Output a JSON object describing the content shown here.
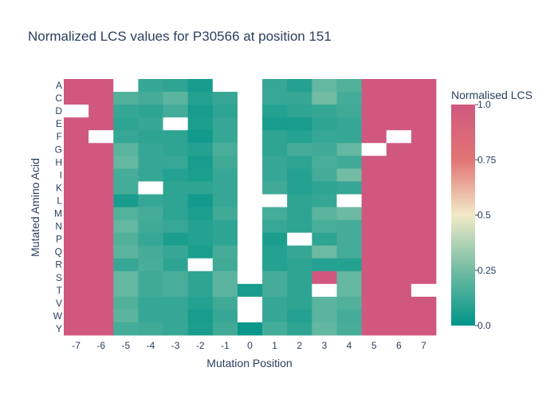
{
  "chart_data": {
    "type": "heatmap",
    "title": "Normalized LCS values for P30566 at position 151",
    "xlabel": "Mutation Position",
    "ylabel": "Mutated Amino Acid",
    "x": [
      "-7",
      "-6",
      "-5",
      "-4",
      "-3",
      "-2",
      "-1",
      "0",
      "1",
      "2",
      "3",
      "4",
      "5",
      "6",
      "7"
    ],
    "y": [
      "A",
      "C",
      "D",
      "E",
      "F",
      "G",
      "H",
      "I",
      "K",
      "L",
      "M",
      "N",
      "P",
      "Q",
      "R",
      "S",
      "T",
      "V",
      "W",
      "Y"
    ],
    "z": [
      [
        1.0,
        1.0,
        null,
        0.12,
        0.1,
        0.05,
        null,
        null,
        0.12,
        0.08,
        0.22,
        0.18,
        1.0,
        1.0,
        1.0
      ],
      [
        1.0,
        1.0,
        0.18,
        0.15,
        0.2,
        0.08,
        0.12,
        null,
        0.12,
        0.12,
        0.25,
        0.15,
        1.0,
        1.0,
        1.0
      ],
      [
        null,
        1.0,
        0.12,
        0.1,
        0.15,
        0.05,
        0.1,
        null,
        0.08,
        0.1,
        0.12,
        0.14,
        1.0,
        1.0,
        1.0
      ],
      [
        1.0,
        1.0,
        0.1,
        0.12,
        null,
        0.06,
        0.12,
        null,
        0.05,
        0.05,
        0.1,
        0.12,
        1.0,
        1.0,
        1.0
      ],
      [
        1.0,
        null,
        0.12,
        0.1,
        0.1,
        0.04,
        0.12,
        null,
        0.1,
        0.08,
        0.12,
        0.12,
        1.0,
        null,
        1.0
      ],
      [
        1.0,
        1.0,
        0.2,
        0.12,
        0.1,
        0.08,
        0.16,
        null,
        0.1,
        0.15,
        0.14,
        0.22,
        null,
        1.0,
        1.0
      ],
      [
        1.0,
        1.0,
        0.22,
        0.12,
        0.12,
        0.05,
        0.14,
        null,
        0.12,
        0.1,
        0.16,
        0.14,
        1.0,
        1.0,
        1.0
      ],
      [
        1.0,
        1.0,
        0.15,
        0.12,
        0.08,
        0.06,
        0.12,
        null,
        0.12,
        0.08,
        0.15,
        0.25,
        1.0,
        1.0,
        1.0
      ],
      [
        1.0,
        1.0,
        0.15,
        null,
        0.1,
        0.1,
        0.12,
        null,
        0.14,
        0.08,
        0.1,
        0.12,
        1.0,
        1.0,
        1.0
      ],
      [
        1.0,
        1.0,
        0.05,
        0.12,
        0.1,
        0.04,
        0.12,
        null,
        null,
        0.1,
        0.12,
        null,
        1.0,
        1.0,
        1.0
      ],
      [
        1.0,
        1.0,
        0.18,
        0.15,
        0.1,
        0.06,
        0.14,
        null,
        0.15,
        0.1,
        0.2,
        0.24,
        1.0,
        1.0,
        1.0
      ],
      [
        1.0,
        1.0,
        0.22,
        0.14,
        0.12,
        0.08,
        0.1,
        null,
        0.12,
        0.1,
        0.16,
        0.15,
        1.0,
        1.0,
        1.0
      ],
      [
        1.0,
        1.0,
        0.18,
        0.12,
        0.06,
        0.08,
        0.1,
        null,
        0.06,
        null,
        0.1,
        0.15,
        1.0,
        1.0,
        1.0
      ],
      [
        1.0,
        1.0,
        0.2,
        0.15,
        0.12,
        0.06,
        0.15,
        null,
        0.08,
        0.12,
        0.24,
        0.15,
        1.0,
        1.0,
        1.0
      ],
      [
        1.0,
        1.0,
        0.12,
        0.16,
        0.1,
        null,
        0.14,
        null,
        0.08,
        0.1,
        0.08,
        0.08,
        1.0,
        1.0,
        1.0
      ],
      [
        1.0,
        1.0,
        0.22,
        0.14,
        0.16,
        0.1,
        0.2,
        null,
        0.15,
        0.1,
        1.0,
        0.22,
        1.0,
        1.0,
        1.0
      ],
      [
        1.0,
        1.0,
        0.22,
        0.14,
        0.16,
        0.1,
        0.2,
        0.05,
        0.15,
        0.1,
        null,
        0.22,
        1.0,
        1.0,
        null
      ],
      [
        1.0,
        1.0,
        0.18,
        0.12,
        0.12,
        0.08,
        0.14,
        null,
        0.12,
        0.1,
        0.2,
        0.18,
        1.0,
        1.0,
        1.0
      ],
      [
        1.0,
        1.0,
        0.2,
        0.12,
        0.12,
        0.05,
        0.12,
        null,
        0.12,
        0.08,
        0.2,
        0.15,
        1.0,
        1.0,
        1.0
      ],
      [
        1.0,
        1.0,
        0.15,
        0.14,
        0.12,
        0.06,
        0.14,
        0.02,
        0.15,
        0.1,
        0.22,
        0.16,
        1.0,
        1.0,
        1.0
      ]
    ],
    "zlim": [
      0,
      1
    ],
    "colorscale": "Tealrose",
    "colorbar": {
      "title": "Normalised LCS",
      "ticks": [
        "1.0",
        "0.75",
        "0.5",
        "0.25",
        "0.0"
      ],
      "tick_values": [
        1.0,
        0.75,
        0.5,
        0.25,
        0.0
      ]
    },
    "colors": {
      "stops": [
        "#009488",
        "#72bca3",
        "#f1eac8",
        "#e27474",
        "#d0587e"
      ],
      "text": "#2a3f5f",
      "missing": "#ffffff"
    },
    "legend": "right"
  }
}
